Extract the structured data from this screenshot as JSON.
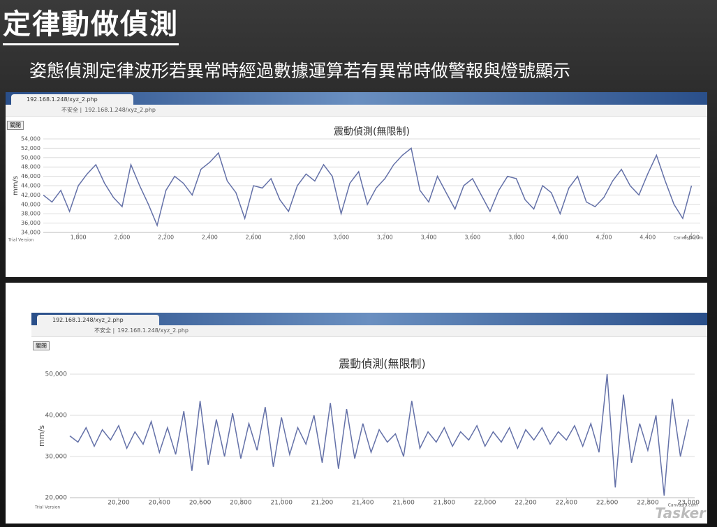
{
  "slide": {
    "title": "定律動做偵測",
    "subtitle": "姿態偵測定律波形若異常時經過數據運算若有異常時做警報與燈號顯示"
  },
  "browser": {
    "tab": "192.168.1.248/xyz_2.php",
    "security": "不安全 |",
    "url": "192.168.1.248/xyz_2.php",
    "button": "關閉"
  },
  "watermark": "Tasker",
  "chart_data": [
    {
      "type": "line",
      "title": "震動偵測(無限制)",
      "y_label": "mm/s",
      "credit_left": "Trial Version",
      "credit_right": "CanvasJS.com",
      "grid": true,
      "xlim": [
        1640,
        4640
      ],
      "ylim": [
        34000,
        54000
      ],
      "xticks": [
        {
          "value": 1800,
          "label": "1,800"
        },
        {
          "value": 2000,
          "label": "2,000"
        },
        {
          "value": 2200,
          "label": "2,200"
        },
        {
          "value": 2400,
          "label": "2,400"
        },
        {
          "value": 2600,
          "label": "2,600"
        },
        {
          "value": 2800,
          "label": "2,800"
        },
        {
          "value": 3000,
          "label": "3,000"
        },
        {
          "value": 3200,
          "label": "3,200"
        },
        {
          "value": 3400,
          "label": "3,400"
        },
        {
          "value": 3600,
          "label": "3,600"
        },
        {
          "value": 3800,
          "label": "3,800"
        },
        {
          "value": 4000,
          "label": "4,000"
        },
        {
          "value": 4200,
          "label": "4,200"
        },
        {
          "value": 4400,
          "label": "4,400"
        },
        {
          "value": 4600,
          "label": "4,600"
        }
      ],
      "yticks": [
        {
          "value": 34000,
          "label": "34,000"
        },
        {
          "value": 36000,
          "label": "36,000"
        },
        {
          "value": 38000,
          "label": "38,000"
        },
        {
          "value": 40000,
          "label": "40,000"
        },
        {
          "value": 42000,
          "label": "42,000"
        },
        {
          "value": 44000,
          "label": "44,000"
        },
        {
          "value": 46000,
          "label": "46,000"
        },
        {
          "value": 48000,
          "label": "48,000"
        },
        {
          "value": 50000,
          "label": "50,000"
        },
        {
          "value": 52000,
          "label": "52,000"
        },
        {
          "value": 54000,
          "label": "54,000"
        }
      ],
      "x": [
        1640,
        1680,
        1720,
        1760,
        1800,
        1840,
        1880,
        1920,
        1960,
        2000,
        2040,
        2080,
        2120,
        2160,
        2200,
        2240,
        2280,
        2320,
        2360,
        2400,
        2440,
        2480,
        2520,
        2560,
        2600,
        2640,
        2680,
        2720,
        2760,
        2800,
        2840,
        2880,
        2920,
        2960,
        3000,
        3040,
        3080,
        3120,
        3160,
        3200,
        3240,
        3280,
        3320,
        3360,
        3400,
        3440,
        3480,
        3520,
        3560,
        3600,
        3640,
        3680,
        3720,
        3760,
        3800,
        3840,
        3880,
        3920,
        3960,
        4000,
        4040,
        4080,
        4120,
        4160,
        4200,
        4240,
        4280,
        4320,
        4360,
        4400,
        4440,
        4480,
        4520,
        4560,
        4600
      ],
      "series": [
        {
          "color": "#6471a8",
          "values": [
            42000,
            40500,
            43000,
            38500,
            44000,
            46500,
            48500,
            44500,
            41500,
            39500,
            48500,
            44000,
            40000,
            35500,
            43000,
            46000,
            44500,
            42000,
            47500,
            49000,
            51000,
            45000,
            42500,
            37000,
            44000,
            43500,
            45500,
            41000,
            38500,
            44000,
            46500,
            45000,
            48500,
            46000,
            38000,
            44500,
            47000,
            40000,
            43500,
            45500,
            48500,
            50500,
            52000,
            43000,
            40500,
            46000,
            42500,
            39000,
            44000,
            45500,
            42000,
            38500,
            43000,
            46000,
            45500,
            41000,
            39000,
            44000,
            42500,
            38000,
            43500,
            46000,
            40500,
            39500,
            41500,
            45000,
            47500,
            44000,
            42000,
            46500,
            50500,
            45000,
            40000,
            37000,
            44000
          ]
        }
      ]
    },
    {
      "type": "line",
      "title": "震動偵測(無限制)",
      "y_label": "mm/s",
      "credit_left": "Trial Version",
      "credit_right": "CanvasJS.com",
      "grid": true,
      "xlim": [
        19960,
        23030
      ],
      "ylim": [
        20000,
        50000
      ],
      "xticks": [
        {
          "value": 20200,
          "label": "20,200"
        },
        {
          "value": 20400,
          "label": "20,400"
        },
        {
          "value": 20600,
          "label": "20,600"
        },
        {
          "value": 20800,
          "label": "20,800"
        },
        {
          "value": 21000,
          "label": "21,000"
        },
        {
          "value": 21200,
          "label": "21,200"
        },
        {
          "value": 21400,
          "label": "21,400"
        },
        {
          "value": 21600,
          "label": "21,600"
        },
        {
          "value": 21800,
          "label": "21,800"
        },
        {
          "value": 22000,
          "label": "22,000"
        },
        {
          "value": 22200,
          "label": "22,200"
        },
        {
          "value": 22400,
          "label": "22,400"
        },
        {
          "value": 22600,
          "label": "22,600"
        },
        {
          "value": 22800,
          "label": "22,800"
        },
        {
          "value": 23000,
          "label": "23,000"
        }
      ],
      "yticks": [
        {
          "value": 20000,
          "label": "20,000"
        },
        {
          "value": 30000,
          "label": "30,000"
        },
        {
          "value": 40000,
          "label": "40,000"
        },
        {
          "value": 50000,
          "label": "50,000"
        }
      ],
      "x": [
        19960,
        20000,
        20040,
        20080,
        20120,
        20160,
        20200,
        20240,
        20280,
        20320,
        20360,
        20400,
        20440,
        20480,
        20520,
        20560,
        20600,
        20640,
        20680,
        20720,
        20760,
        20800,
        20840,
        20880,
        20920,
        20960,
        21000,
        21040,
        21080,
        21120,
        21160,
        21200,
        21240,
        21280,
        21320,
        21360,
        21400,
        21440,
        21480,
        21520,
        21560,
        21600,
        21640,
        21680,
        21720,
        21760,
        21800,
        21840,
        21880,
        21920,
        21960,
        22000,
        22040,
        22080,
        22120,
        22160,
        22200,
        22240,
        22280,
        22320,
        22360,
        22400,
        22440,
        22480,
        22520,
        22560,
        22600,
        22640,
        22680,
        22720,
        22760,
        22800,
        22840,
        22880,
        22920,
        22960,
        23000
      ],
      "series": [
        {
          "color": "#6471a8",
          "values": [
            35000,
            33500,
            37000,
            32500,
            36500,
            34000,
            37500,
            32000,
            36000,
            33000,
            38500,
            31000,
            37000,
            30500,
            41000,
            26500,
            43500,
            28000,
            39000,
            30000,
            40500,
            29500,
            38000,
            31500,
            42000,
            27500,
            39500,
            30500,
            37000,
            33000,
            40000,
            28500,
            43000,
            27000,
            41500,
            29500,
            38000,
            31000,
            36500,
            33500,
            35500,
            30000,
            43500,
            32000,
            36000,
            33500,
            37000,
            32500,
            36000,
            34000,
            37500,
            32500,
            36000,
            33500,
            37000,
            32000,
            36500,
            34000,
            37000,
            33000,
            36000,
            34000,
            37500,
            32500,
            38000,
            31000,
            50000,
            22500,
            45000,
            28500,
            38000,
            31500,
            40000,
            20500,
            44000,
            30000,
            39000
          ]
        }
      ]
    }
  ]
}
